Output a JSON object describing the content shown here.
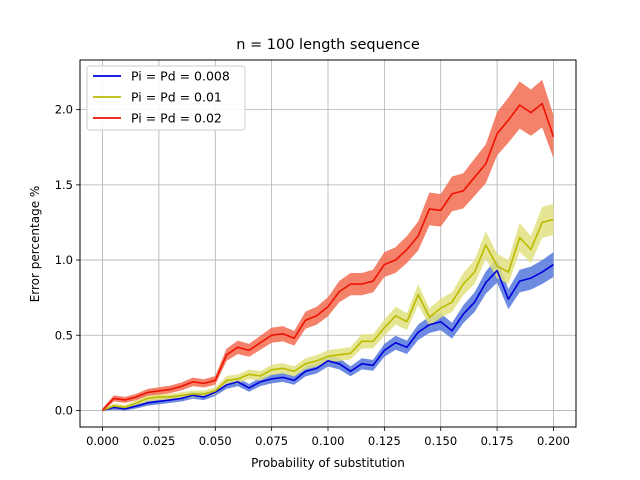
{
  "chart_data": {
    "type": "line",
    "title": "n = 100 length sequence",
    "xlabel": "Probability of substitution",
    "ylabel": "Error percentage %",
    "xlim": [
      -0.01,
      0.21
    ],
    "ylim": [
      -0.11,
      2.33
    ],
    "x_ticks": [
      "0.000",
      "0.025",
      "0.050",
      "0.075",
      "0.100",
      "0.125",
      "0.150",
      "0.175",
      "0.200"
    ],
    "y_ticks": [
      "0.0",
      "0.5",
      "1.0",
      "1.5",
      "2.0"
    ],
    "grid": true,
    "legend_position": "upper-left",
    "x": [
      0.0,
      0.005,
      0.01,
      0.015,
      0.02,
      0.025,
      0.03,
      0.035,
      0.04,
      0.045,
      0.05,
      0.055,
      0.06,
      0.065,
      0.07,
      0.075,
      0.08,
      0.085,
      0.09,
      0.095,
      0.1,
      0.105,
      0.11,
      0.115,
      0.12,
      0.125,
      0.13,
      0.135,
      0.14,
      0.145,
      0.15,
      0.155,
      0.16,
      0.165,
      0.17,
      0.175,
      0.18,
      0.185,
      0.19,
      0.195,
      0.2
    ],
    "series": [
      {
        "name": "Pi = Pd = 0.008",
        "color": "#0000dd",
        "band_color": "#5577dd",
        "values": [
          0.0,
          0.02,
          0.01,
          0.03,
          0.05,
          0.06,
          0.07,
          0.08,
          0.1,
          0.09,
          0.12,
          0.17,
          0.19,
          0.15,
          0.19,
          0.21,
          0.22,
          0.2,
          0.26,
          0.28,
          0.33,
          0.31,
          0.26,
          0.31,
          0.3,
          0.4,
          0.45,
          0.42,
          0.52,
          0.57,
          0.59,
          0.53,
          0.64,
          0.72,
          0.85,
          0.93,
          0.74,
          0.86,
          0.88,
          0.92,
          0.97
        ]
      },
      {
        "name": "Pi = Pd = 0.01",
        "color": "#bbbb00",
        "band_color": "#e0e080",
        "values": [
          0.0,
          0.03,
          0.02,
          0.05,
          0.08,
          0.09,
          0.09,
          0.1,
          0.11,
          0.11,
          0.13,
          0.2,
          0.21,
          0.24,
          0.23,
          0.27,
          0.28,
          0.26,
          0.31,
          0.33,
          0.36,
          0.37,
          0.38,
          0.46,
          0.46,
          0.55,
          0.63,
          0.59,
          0.77,
          0.62,
          0.68,
          0.72,
          0.84,
          0.92,
          1.1,
          0.96,
          0.92,
          1.15,
          1.07,
          1.25,
          1.27
        ]
      },
      {
        "name": "Pi = Pd = 0.02",
        "color": "#ee1100",
        "band_color": "#f26c50",
        "values": [
          0.0,
          0.08,
          0.07,
          0.09,
          0.12,
          0.13,
          0.14,
          0.16,
          0.19,
          0.18,
          0.2,
          0.37,
          0.42,
          0.4,
          0.45,
          0.5,
          0.51,
          0.48,
          0.6,
          0.63,
          0.69,
          0.79,
          0.84,
          0.84,
          0.86,
          0.97,
          1.0,
          1.07,
          1.16,
          1.34,
          1.33,
          1.44,
          1.46,
          1.55,
          1.64,
          1.84,
          1.93,
          2.03,
          1.98,
          2.04,
          1.82
        ]
      }
    ]
  }
}
